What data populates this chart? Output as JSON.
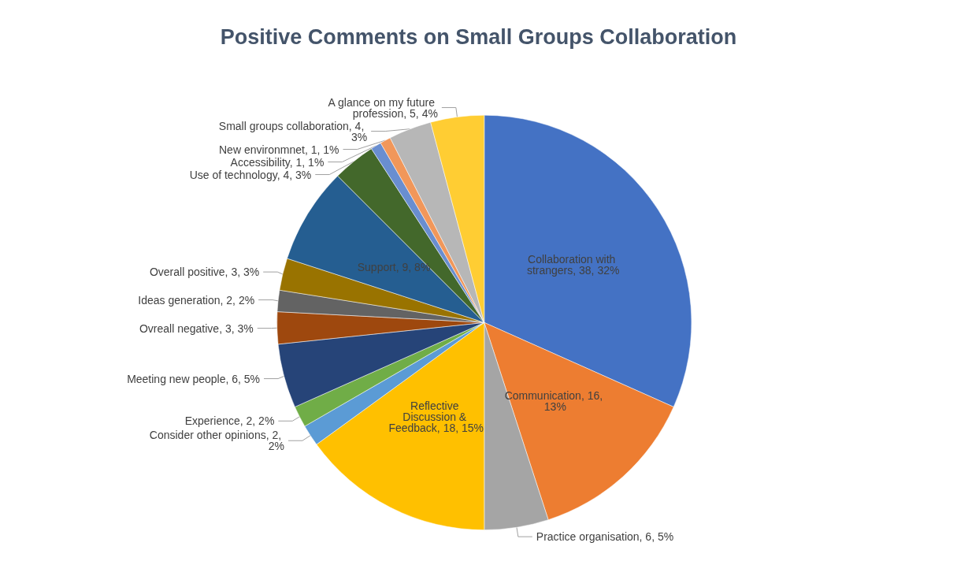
{
  "chart_data": {
    "type": "pie",
    "title": "Positive Comments on Small Groups Collaboration",
    "categories": [
      "Collaboration with strangers",
      "Communication",
      "Practice organisation",
      "Reflective Discussion & Feedback",
      "Consider other opinions",
      "Experience",
      "Meeting new people",
      "Ovreall negative",
      "Ideas generation",
      "Overall positive",
      "Support",
      "Use of technology",
      "Accessibility",
      "New environmnet",
      "Small groups collaboration",
      "A glance on my future profession"
    ],
    "values": [
      38,
      16,
      6,
      18,
      2,
      2,
      6,
      3,
      2,
      3,
      9,
      4,
      1,
      1,
      4,
      5
    ],
    "value_labels": [
      ", 38, 32%",
      ", 16, 13%",
      ", 6, 5%",
      ", 18, 15%",
      ", 2, 2%",
      ", 2, 2%",
      ", 6, 5%",
      ", 3, 3%",
      ", 2, 2%",
      ", 3, 3%",
      ", 9, 8%",
      ", 4, 3%",
      ", 1, 1%",
      ", 1, 1%",
      ", 4, 3%",
      ", 5, 4%"
    ],
    "colors": [
      "#4472c4",
      "#ed7d31",
      "#a5a5a5",
      "#ffc000",
      "#5b9bd5",
      "#70ad47",
      "#264478",
      "#9e480e",
      "#636363",
      "#997300",
      "#255e91",
      "#43682b",
      "#698ed0",
      "#f1975a",
      "#b7b7b7",
      "#ffcd33"
    ],
    "legend": false
  }
}
